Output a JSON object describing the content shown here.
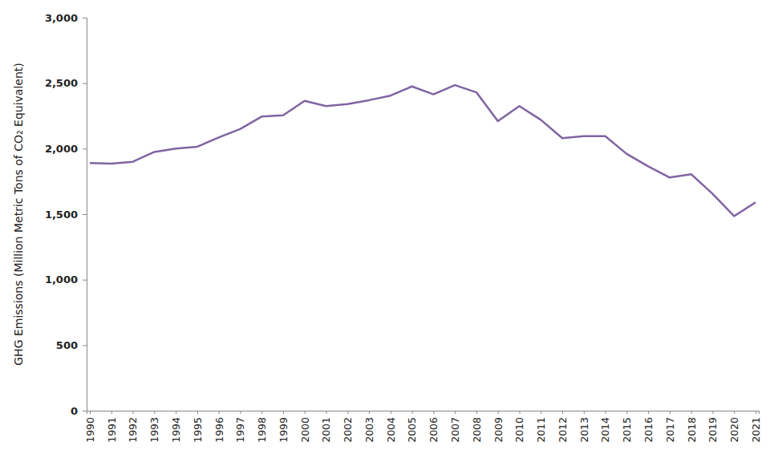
{
  "chart_data": {
    "type": "line",
    "y_label": "GHG Emissions (Million Metric Tons of CO₂ Equivalent)",
    "categories": [
      "1990",
      "1991",
      "1992",
      "1993",
      "1994",
      "1995",
      "1996",
      "1997",
      "1998",
      "1999",
      "2000",
      "2001",
      "2002",
      "2003",
      "2004",
      "2005",
      "2006",
      "2007",
      "2008",
      "2009",
      "2010",
      "2011",
      "2012",
      "2013",
      "2014",
      "2015",
      "2016",
      "2017",
      "2018",
      "2019",
      "2020",
      "2021"
    ],
    "values": [
      1890,
      1885,
      1900,
      1975,
      2000,
      2015,
      2085,
      2150,
      2245,
      2255,
      2365,
      2325,
      2340,
      2370,
      2405,
      2475,
      2415,
      2485,
      2430,
      2210,
      2325,
      2220,
      2080,
      2095,
      2095,
      1960,
      1865,
      1780,
      1805,
      1655,
      1485,
      1590
    ],
    "color": "#8064a2",
    "ylim": [
      0,
      3000
    ],
    "yticks": [
      0,
      500,
      {
        "value": 1000,
        "label": "1,000"
      },
      {
        "value": 1500,
        "label": "1,500"
      },
      {
        "value": 2000,
        "label": "2,000"
      },
      {
        "value": 2500,
        "label": "2,500"
      },
      {
        "value": 3000,
        "label": "3,000"
      }
    ],
    "grid": false
  }
}
